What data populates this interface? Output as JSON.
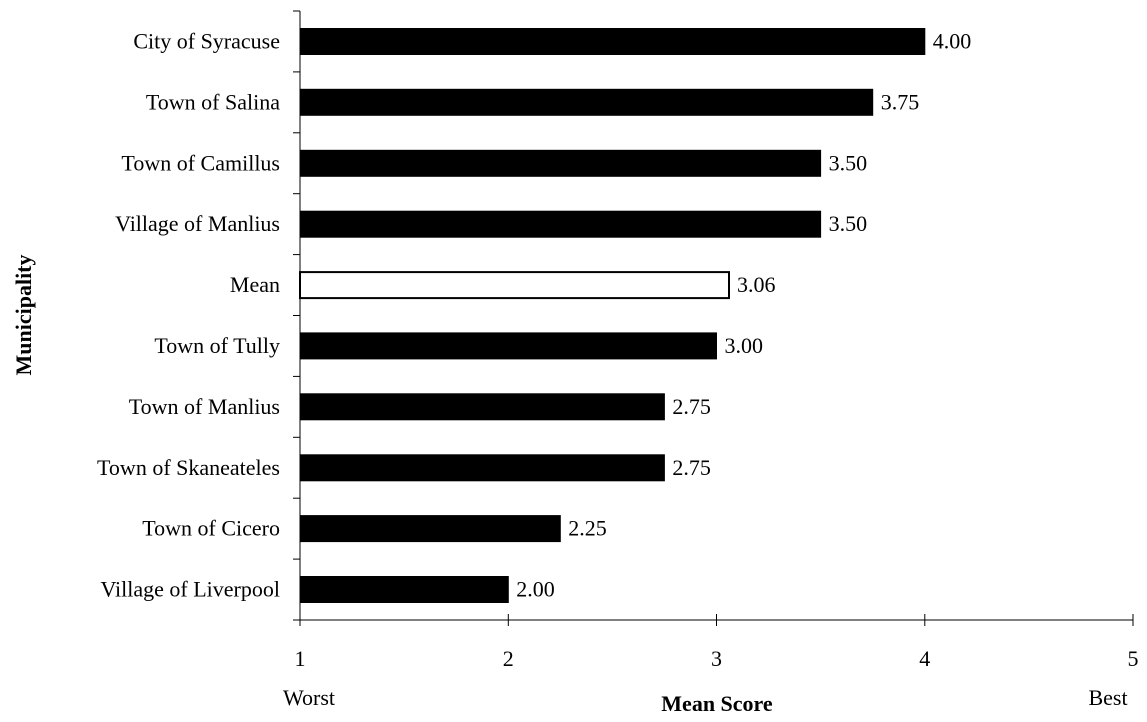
{
  "chart_data": {
    "type": "bar",
    "orientation": "horizontal",
    "categories": [
      "City of Syracuse",
      "Town of Salina",
      "Town of Camillus",
      "Village of Manlius",
      "Mean",
      "Town of Tully",
      "Town of Manlius",
      "Town of Skaneateles",
      "Town of Cicero",
      "Village of Liverpool"
    ],
    "values": [
      4.0,
      3.75,
      3.5,
      3.5,
      3.06,
      3.0,
      2.75,
      2.75,
      2.25,
      2.0
    ],
    "value_labels": [
      "4.00",
      "3.75",
      "3.50",
      "3.50",
      "3.06",
      "3.00",
      "2.75",
      "2.75",
      "2.25",
      "2.00"
    ],
    "highlight": "Mean",
    "xlabel": "Mean Score",
    "ylabel": "Municipality",
    "xlim": [
      1,
      5
    ],
    "xticks": [
      "1",
      "2",
      "3",
      "4",
      "5"
    ],
    "x_low_label": "Worst",
    "x_high_label": "Best",
    "grid": false,
    "legend": "none",
    "colors": {
      "bar": "#000000",
      "highlight_fill": "#ffffff",
      "highlight_stroke": "#000000",
      "axis": "#000000"
    }
  }
}
